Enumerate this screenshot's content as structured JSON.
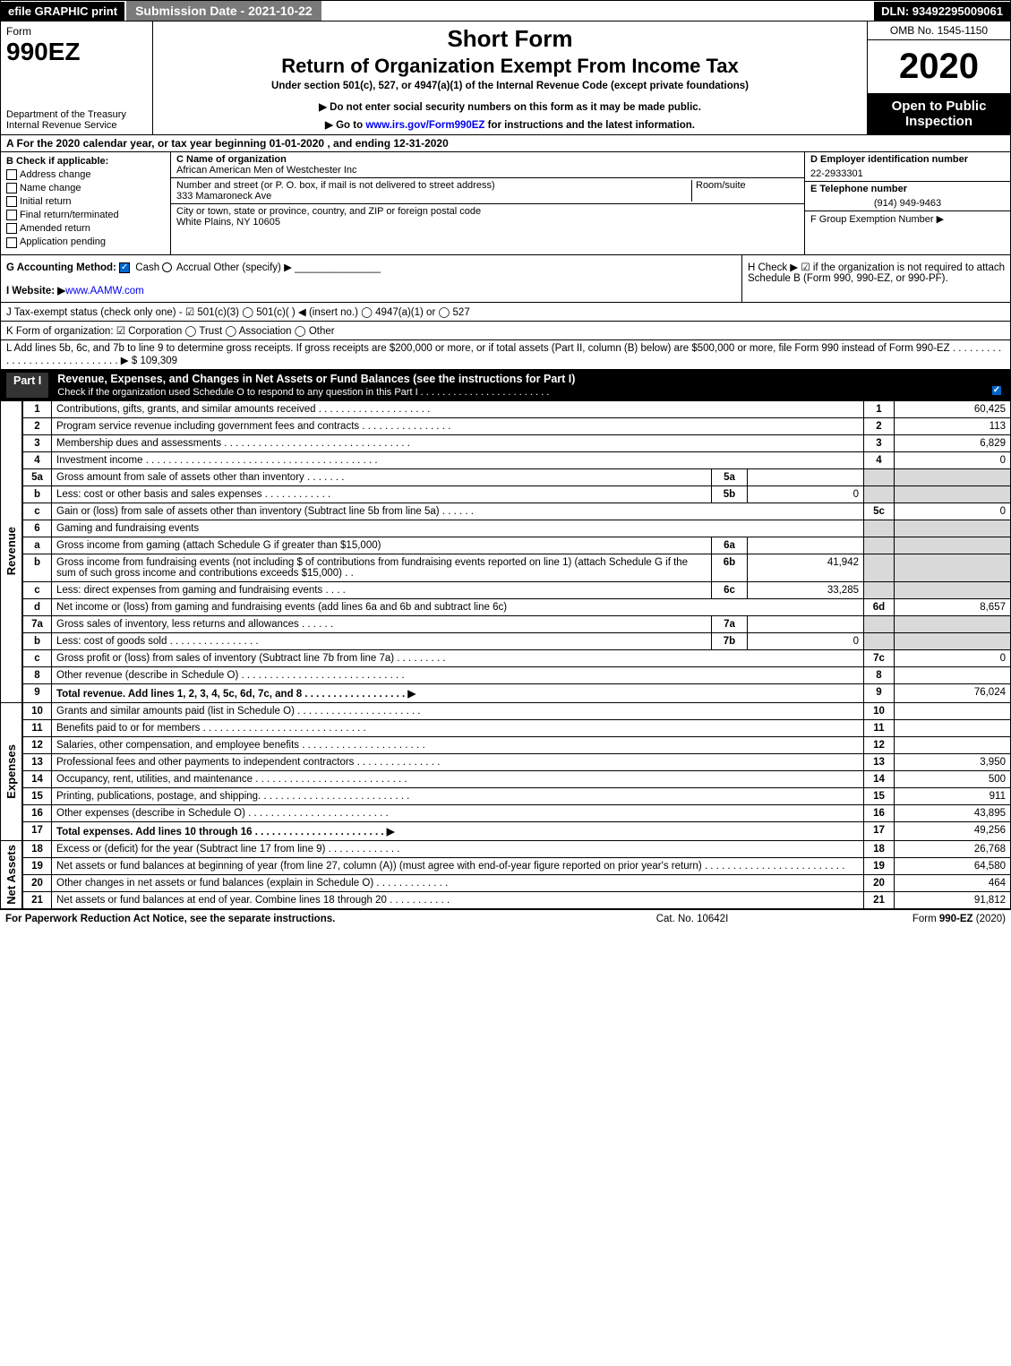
{
  "top": {
    "efile": "efile GRAPHIC print",
    "subdate": "Submission Date - 2021-10-22",
    "dln": "DLN: 93492295009061"
  },
  "header": {
    "form_label": "Form",
    "form_number": "990EZ",
    "dept": "Department of the Treasury Internal Revenue Service",
    "short": "Short Form",
    "return_title": "Return of Organization Exempt From Income Tax",
    "under": "Under section 501(c), 527, or 4947(a)(1) of the Internal Revenue Code (except private foundations)",
    "donot": "▶ Do not enter social security numbers on this form as it may be made public.",
    "goto_prefix": "▶ Go to ",
    "goto_link": "www.irs.gov/Form990EZ",
    "goto_suffix": " for instructions and the latest information.",
    "omb": "OMB No. 1545-1150",
    "year": "2020",
    "open": "Open to Public Inspection"
  },
  "row_a": "A For the 2020 calendar year, or tax year beginning 01-01-2020 , and ending 12-31-2020",
  "section_b": {
    "head": "B Check if applicable:",
    "items": [
      "Address change",
      "Name change",
      "Initial return",
      "Final return/terminated",
      "Amended return",
      "Application pending"
    ]
  },
  "section_c": {
    "name_label": "C Name of organization",
    "name": "African American Men of Westchester Inc",
    "addr_label": "Number and street (or P. O. box, if mail is not delivered to street address)",
    "addr": "333 Mamaroneck Ave",
    "room_label": "Room/suite",
    "city_label": "City or town, state or province, country, and ZIP or foreign postal code",
    "city": "White Plains, NY  10605"
  },
  "section_d": {
    "ein_label": "D Employer identification number",
    "ein": "22-2933301",
    "phone_label": "E Telephone number",
    "phone": "(914) 949-9463",
    "group_label": "F Group Exemption Number ▶"
  },
  "line_g": {
    "label": "G Accounting Method:",
    "cash": "Cash",
    "accrual": "Accrual",
    "other": "Other (specify) ▶"
  },
  "line_h": "H Check ▶ ☑ if the organization is not required to attach Schedule B (Form 990, 990-EZ, or 990-PF).",
  "line_i": {
    "label": "I Website: ▶",
    "value": "www.AAMW.com"
  },
  "line_j": "J Tax-exempt status (check only one) - ☑ 501(c)(3)  ◯ 501(c)(  ) ◀ (insert no.)  ◯ 4947(a)(1) or  ◯ 527",
  "line_k": "K Form of organization: ☑ Corporation  ◯ Trust  ◯ Association  ◯ Other",
  "line_l": {
    "text": "L Add lines 5b, 6c, and 7b to line 9 to determine gross receipts. If gross receipts are $200,000 or more, or if total assets (Part II, column (B) below) are $500,000 or more, file Form 990 instead of Form 990-EZ . . . . . . . . . . . . . . . . . . . . . . . . . . . . . ▶",
    "value": "$ 109,309"
  },
  "part1": {
    "label": "Part I",
    "title": "Revenue, Expenses, and Changes in Net Assets or Fund Balances (see the instructions for Part I)",
    "check": "Check if the organization used Schedule O to respond to any question in this Part I . . . . . . . . . . . . . . . . . . . . . . . .",
    "checked": true
  },
  "revenue_side": "Revenue",
  "expenses_side": "Expenses",
  "netassets_side": "Net Assets",
  "lines": {
    "l1": {
      "num": "1",
      "desc": "Contributions, gifts, grants, and similar amounts received . . . . . . . . . . . . . . . . . . . .",
      "rnum": "1",
      "rval": "60,425"
    },
    "l2": {
      "num": "2",
      "desc": "Program service revenue including government fees and contracts . . . . . . . . . . . . . . . .",
      "rnum": "2",
      "rval": "113"
    },
    "l3": {
      "num": "3",
      "desc": "Membership dues and assessments . . . . . . . . . . . . . . . . . . . . . . . . . . . . . . . . .",
      "rnum": "3",
      "rval": "6,829"
    },
    "l4": {
      "num": "4",
      "desc": "Investment income . . . . . . . . . . . . . . . . . . . . . . . . . . . . . . . . . . . . . . . . .",
      "rnum": "4",
      "rval": "0"
    },
    "l5a": {
      "num": "5a",
      "desc": "Gross amount from sale of assets other than inventory . . . . . . .",
      "sub": "5a",
      "sval": ""
    },
    "l5b": {
      "num": "b",
      "desc": "Less: cost or other basis and sales expenses . . . . . . . . . . . .",
      "sub": "5b",
      "sval": "0"
    },
    "l5c": {
      "num": "c",
      "desc": "Gain or (loss) from sale of assets other than inventory (Subtract line 5b from line 5a) . . . . . .",
      "rnum": "5c",
      "rval": "0"
    },
    "l6": {
      "num": "6",
      "desc": "Gaming and fundraising events"
    },
    "l6a": {
      "num": "a",
      "desc": "Gross income from gaming (attach Schedule G if greater than $15,000)",
      "sub": "6a",
      "sval": ""
    },
    "l6b": {
      "num": "b",
      "desc": "Gross income from fundraising events (not including $                       of contributions from fundraising events reported on line 1) (attach Schedule G if the sum of such gross income and contributions exceeds $15,000) . .",
      "sub": "6b",
      "sval": "41,942"
    },
    "l6c": {
      "num": "c",
      "desc": "Less: direct expenses from gaming and fundraising events . . . .",
      "sub": "6c",
      "sval": "33,285"
    },
    "l6d": {
      "num": "d",
      "desc": "Net income or (loss) from gaming and fundraising events (add lines 6a and 6b and subtract line 6c)",
      "rnum": "6d",
      "rval": "8,657"
    },
    "l7a": {
      "num": "7a",
      "desc": "Gross sales of inventory, less returns and allowances . . . . . .",
      "sub": "7a",
      "sval": ""
    },
    "l7b": {
      "num": "b",
      "desc": "Less: cost of goods sold      . . . . . . . . . . . . . . . .",
      "sub": "7b",
      "sval": "0"
    },
    "l7c": {
      "num": "c",
      "desc": "Gross profit or (loss) from sales of inventory (Subtract line 7b from line 7a) . . . . . . . . .",
      "rnum": "7c",
      "rval": "0"
    },
    "l8": {
      "num": "8",
      "desc": "Other revenue (describe in Schedule O) . . . . . . . . . . . . . . . . . . . . . . . . . . . . .",
      "rnum": "8",
      "rval": ""
    },
    "l9": {
      "num": "9",
      "desc": "Total revenue. Add lines 1, 2, 3, 4, 5c, 6d, 7c, and 8 . . . . . . . . . . . . . . . . . . ▶",
      "rnum": "9",
      "rval": "76,024"
    },
    "l10": {
      "num": "10",
      "desc": "Grants and similar amounts paid (list in Schedule O) . . . . . . . . . . . . . . . . . . . . . .",
      "rnum": "10",
      "rval": ""
    },
    "l11": {
      "num": "11",
      "desc": "Benefits paid to or for members      . . . . . . . . . . . . . . . . . . . . . . . . . . . . .",
      "rnum": "11",
      "rval": ""
    },
    "l12": {
      "num": "12",
      "desc": "Salaries, other compensation, and employee benefits . . . . . . . . . . . . . . . . . . . . . .",
      "rnum": "12",
      "rval": ""
    },
    "l13": {
      "num": "13",
      "desc": "Professional fees and other payments to independent contractors . . . . . . . . . . . . . . .",
      "rnum": "13",
      "rval": "3,950"
    },
    "l14": {
      "num": "14",
      "desc": "Occupancy, rent, utilities, and maintenance . . . . . . . . . . . . . . . . . . . . . . . . . . .",
      "rnum": "14",
      "rval": "500"
    },
    "l15": {
      "num": "15",
      "desc": "Printing, publications, postage, and shipping. . . . . . . . . . . . . . . . . . . . . . . . . . .",
      "rnum": "15",
      "rval": "911"
    },
    "l16": {
      "num": "16",
      "desc": "Other expenses (describe in Schedule O)      . . . . . . . . . . . . . . . . . . . . . . . . .",
      "rnum": "16",
      "rval": "43,895"
    },
    "l17": {
      "num": "17",
      "desc": "Total expenses. Add lines 10 through 16      . . . . . . . . . . . . . . . . . . . . . . . ▶",
      "rnum": "17",
      "rval": "49,256"
    },
    "l18": {
      "num": "18",
      "desc": "Excess or (deficit) for the year (Subtract line 17 from line 9)      . . . . . . . . . . . . .",
      "rnum": "18",
      "rval": "26,768"
    },
    "l19": {
      "num": "19",
      "desc": "Net assets or fund balances at beginning of year (from line 27, column (A)) (must agree with end-of-year figure reported on prior year's return) . . . . . . . . . . . . . . . . . . . . . . . . .",
      "rnum": "19",
      "rval": "64,580"
    },
    "l20": {
      "num": "20",
      "desc": "Other changes in net assets or fund balances (explain in Schedule O) . . . . . . . . . . . . .",
      "rnum": "20",
      "rval": "464"
    },
    "l21": {
      "num": "21",
      "desc": "Net assets or fund balances at end of year. Combine lines 18 through 20 . . . . . . . . . . .",
      "rnum": "21",
      "rval": "91,812"
    }
  },
  "footer": {
    "f1": "For Paperwork Reduction Act Notice, see the separate instructions.",
    "f2": "Cat. No. 10642I",
    "f3": "Form 990-EZ (2020)"
  }
}
